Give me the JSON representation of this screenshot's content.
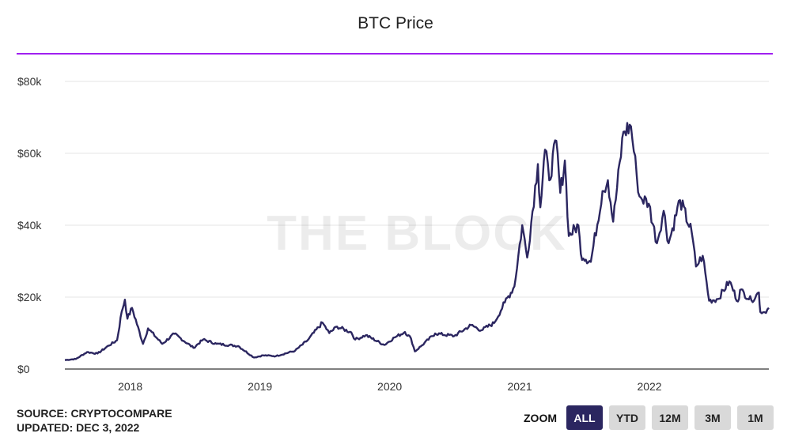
{
  "title": "BTC Price",
  "watermark": "THE BLOCK",
  "footer": {
    "source": "SOURCE: CRYPTOCOMPARE",
    "updated": "UPDATED: DEC 3, 2022"
  },
  "zoom": {
    "label": "ZOOM",
    "buttons": [
      "ALL",
      "YTD",
      "12M",
      "3M",
      "1M"
    ],
    "active": "ALL"
  },
  "colors": {
    "line": "#2b2660",
    "accent": "#a020f0",
    "grid": "#e6e6e6",
    "zoom_active": "#2b2660"
  },
  "chart_data": {
    "type": "line",
    "title": "BTC Price",
    "xlabel": "",
    "ylabel": "",
    "ylim": [
      0,
      80000
    ],
    "xlim": [
      "2017-07-01",
      "2022-12-03"
    ],
    "y_ticks": [
      0,
      20000,
      40000,
      60000,
      80000
    ],
    "y_tick_labels": [
      "$0",
      "$20k",
      "$40k",
      "$60k",
      "$80k"
    ],
    "x_ticks": [
      "2018-01-01",
      "2019-01-01",
      "2020-01-01",
      "2021-01-01",
      "2022-01-01"
    ],
    "x_tick_labels": [
      "2018",
      "2019",
      "2020",
      "2021",
      "2022"
    ],
    "grid": true,
    "legend": "none",
    "series": [
      {
        "points": [
          [
            "2017-07-01",
            2500
          ],
          [
            "2017-08-01",
            2800
          ],
          [
            "2017-09-01",
            4700
          ],
          [
            "2017-10-01",
            4300
          ],
          [
            "2017-11-01",
            6500
          ],
          [
            "2017-11-25",
            8000
          ],
          [
            "2017-12-08",
            16000
          ],
          [
            "2017-12-17",
            19300
          ],
          [
            "2017-12-24",
            14000
          ],
          [
            "2018-01-06",
            17000
          ],
          [
            "2018-02-06",
            7000
          ],
          [
            "2018-02-20",
            11300
          ],
          [
            "2018-04-01",
            7000
          ],
          [
            "2018-05-05",
            9800
          ],
          [
            "2018-06-28",
            5900
          ],
          [
            "2018-07-25",
            8200
          ],
          [
            "2018-09-01",
            7000
          ],
          [
            "2018-11-01",
            6400
          ],
          [
            "2018-12-15",
            3200
          ],
          [
            "2019-01-10",
            3800
          ],
          [
            "2019-02-15",
            3600
          ],
          [
            "2019-04-10",
            5100
          ],
          [
            "2019-05-15",
            8000
          ],
          [
            "2019-06-26",
            12900
          ],
          [
            "2019-07-15",
            10000
          ],
          [
            "2019-08-06",
            11800
          ],
          [
            "2019-09-15",
            10200
          ],
          [
            "2019-09-26",
            8200
          ],
          [
            "2019-10-26",
            9400
          ],
          [
            "2019-12-17",
            6700
          ],
          [
            "2020-01-15",
            8800
          ],
          [
            "2020-02-13",
            10300
          ],
          [
            "2020-03-01",
            8500
          ],
          [
            "2020-03-12",
            4900
          ],
          [
            "2020-04-01",
            6600
          ],
          [
            "2020-05-08",
            9900
          ],
          [
            "2020-07-01",
            9200
          ],
          [
            "2020-08-17",
            12200
          ],
          [
            "2020-09-15",
            10800
          ],
          [
            "2020-10-21",
            12800
          ],
          [
            "2020-11-20",
            18500
          ],
          [
            "2020-12-17",
            23000
          ],
          [
            "2021-01-08",
            40000
          ],
          [
            "2021-01-22",
            31000
          ],
          [
            "2021-02-21",
            57000
          ],
          [
            "2021-02-28",
            45000
          ],
          [
            "2021-03-13",
            61000
          ],
          [
            "2021-03-25",
            52500
          ],
          [
            "2021-04-14",
            63500
          ],
          [
            "2021-04-25",
            49000
          ],
          [
            "2021-05-08",
            58000
          ],
          [
            "2021-05-19",
            37000
          ],
          [
            "2021-06-15",
            40000
          ],
          [
            "2021-06-22",
            32000
          ],
          [
            "2021-07-20",
            29800
          ],
          [
            "2021-08-22",
            49500
          ],
          [
            "2021-09-06",
            52500
          ],
          [
            "2021-09-21",
            41000
          ],
          [
            "2021-10-20",
            66000
          ],
          [
            "2021-11-10",
            67500
          ],
          [
            "2021-11-26",
            54000
          ],
          [
            "2021-12-04",
            48000
          ],
          [
            "2021-12-30",
            46000
          ],
          [
            "2022-01-22",
            35000
          ],
          [
            "2022-02-10",
            44000
          ],
          [
            "2022-02-24",
            35000
          ],
          [
            "2022-03-28",
            47000
          ],
          [
            "2022-04-30",
            38000
          ],
          [
            "2022-05-12",
            28500
          ],
          [
            "2022-05-31",
            31500
          ],
          [
            "2022-06-18",
            19000
          ],
          [
            "2022-07-13",
            19500
          ],
          [
            "2022-08-14",
            24400
          ],
          [
            "2022-09-07",
            18800
          ],
          [
            "2022-09-13",
            22000
          ],
          [
            "2022-10-15",
            19100
          ],
          [
            "2022-11-05",
            21300
          ],
          [
            "2022-11-09",
            15900
          ],
          [
            "2022-11-21",
            15800
          ],
          [
            "2022-12-03",
            17000
          ]
        ]
      }
    ]
  }
}
